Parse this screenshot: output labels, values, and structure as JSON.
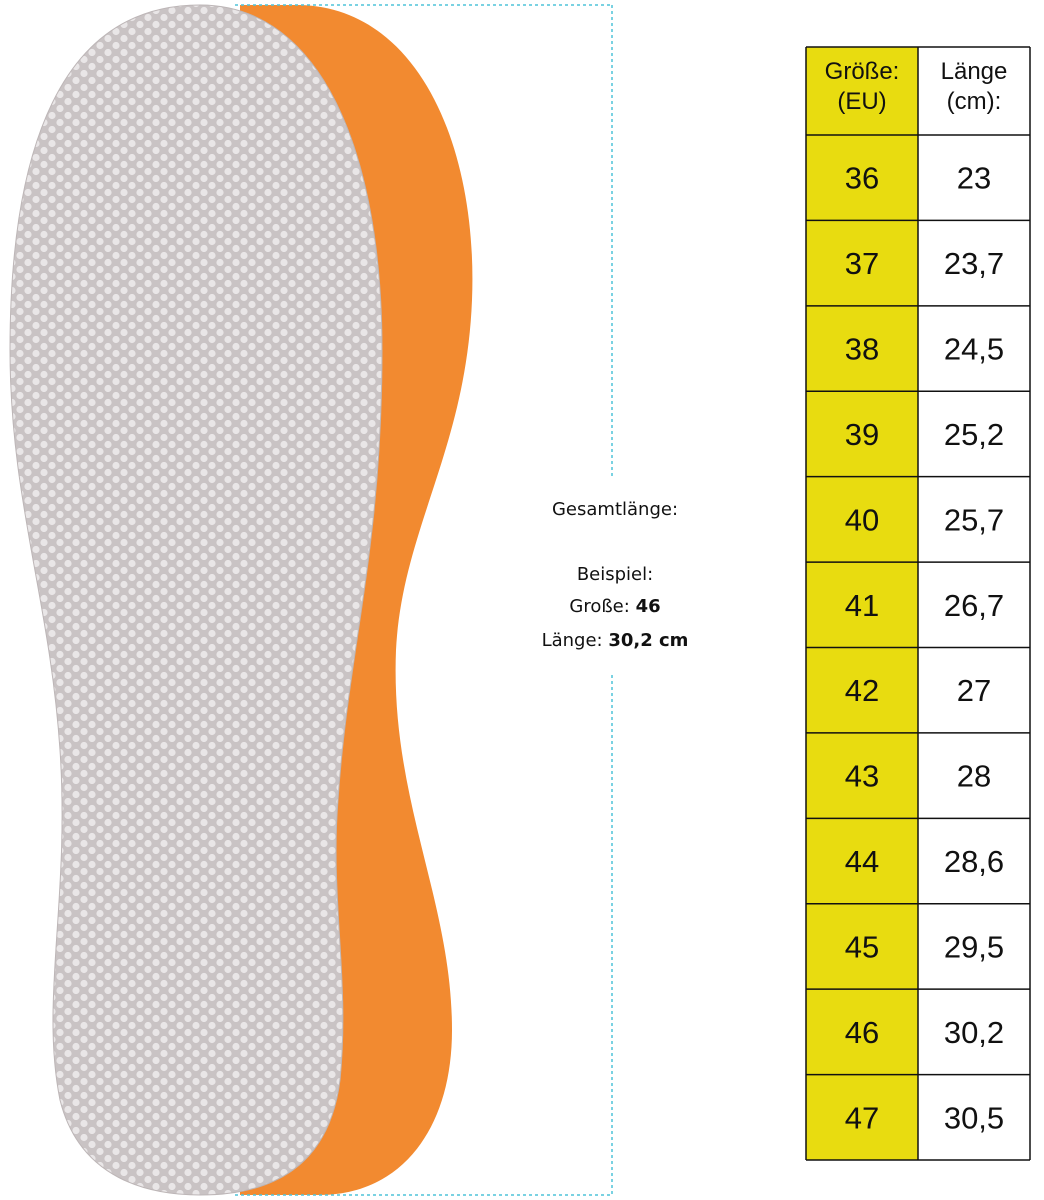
{
  "annotation": {
    "title": "Gesamtlänge:",
    "example_heading": "Beispiel:",
    "size_label": "Große:",
    "size_value": "46",
    "length_label": "Länge:",
    "length_value": "30,2 cm"
  },
  "table": {
    "header": [
      [
        "Größe:",
        "(EU)"
      ],
      [
        "Länge",
        "(cm):"
      ]
    ],
    "rows": [
      [
        "36",
        "23"
      ],
      [
        "37",
        "23,7"
      ],
      [
        "38",
        "24,5"
      ],
      [
        "39",
        "25,2"
      ],
      [
        "40",
        "25,7"
      ],
      [
        "41",
        "26,7"
      ],
      [
        "42",
        "27"
      ],
      [
        "43",
        "28"
      ],
      [
        "44",
        "28,6"
      ],
      [
        "45",
        "29,5"
      ],
      [
        "46",
        "30,2"
      ],
      [
        "47",
        "30,5"
      ]
    ]
  }
}
